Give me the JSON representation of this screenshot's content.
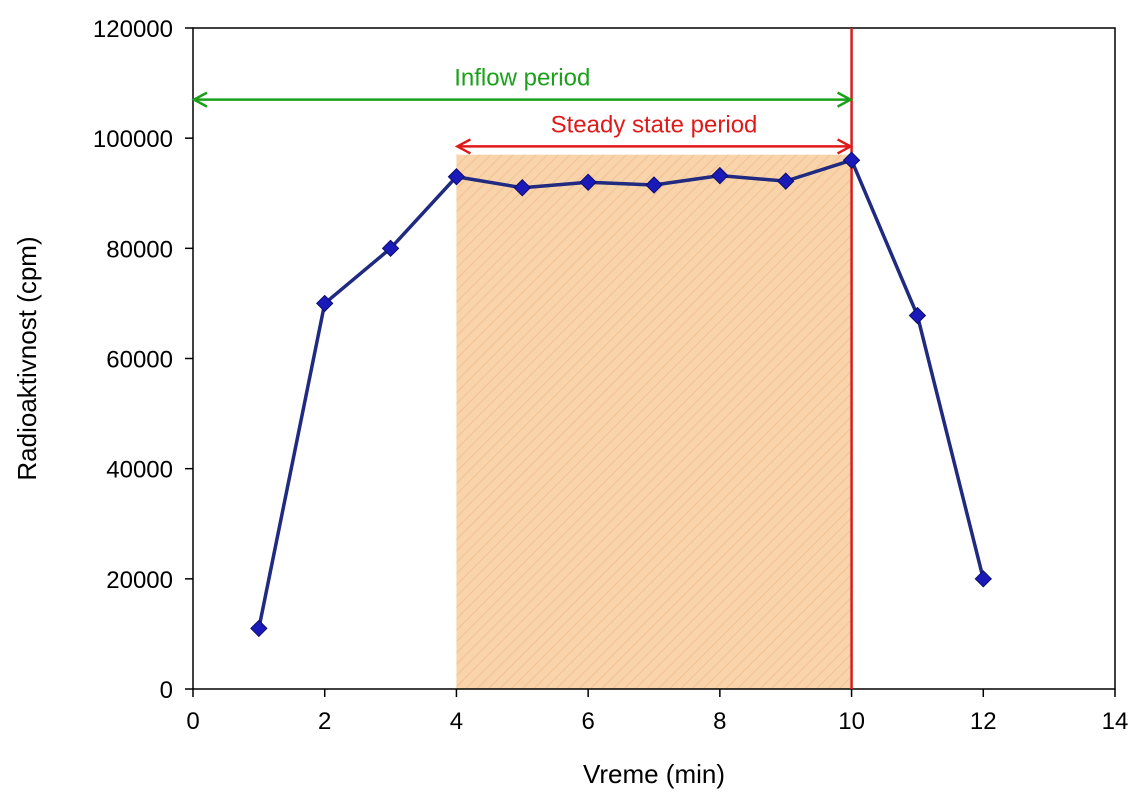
{
  "chart_data": {
    "type": "line",
    "xlabel": "Vreme (min)",
    "ylabel": "Radioaktivnost (cpm)",
    "xlim": [
      0,
      14
    ],
    "ylim": [
      0,
      120000
    ],
    "x_ticks": [
      0,
      2,
      4,
      6,
      8,
      10,
      12,
      14
    ],
    "y_ticks": [
      0,
      20000,
      40000,
      60000,
      80000,
      100000,
      120000
    ],
    "x_tick_labels": [
      "0",
      "2",
      "4",
      "6",
      "8",
      "10",
      "12",
      "14"
    ],
    "y_tick_labels": [
      "0",
      "20000",
      "40000",
      "60000",
      "80000",
      "100000",
      "120000"
    ],
    "grid": false,
    "series": [
      {
        "x": [
          1,
          2,
          3,
          4,
          5,
          6,
          7,
          8,
          9,
          10,
          11,
          12
        ],
        "values": [
          11000,
          70000,
          80000,
          93000,
          91000,
          92000,
          91500,
          93200,
          92200,
          96000,
          67800,
          20000
        ],
        "color": "#1f2a80",
        "marker_color": "#1a1ab8",
        "marker": "diamond"
      }
    ],
    "annotations": {
      "inflow": {
        "text": "Inflow period",
        "x_start": 0,
        "x_end": 10,
        "y": 107000,
        "color": "#1aa01a"
      },
      "steady": {
        "text": "Steady state period",
        "x_start": 4,
        "x_end": 10,
        "y": 98500,
        "color": "#e01a1a"
      },
      "shaded_region": {
        "x_start": 4,
        "x_end": 10,
        "y_top": 97000,
        "color": "#f7c48e"
      },
      "vertical_line": {
        "x": 10,
        "color": "#d42020"
      }
    }
  }
}
